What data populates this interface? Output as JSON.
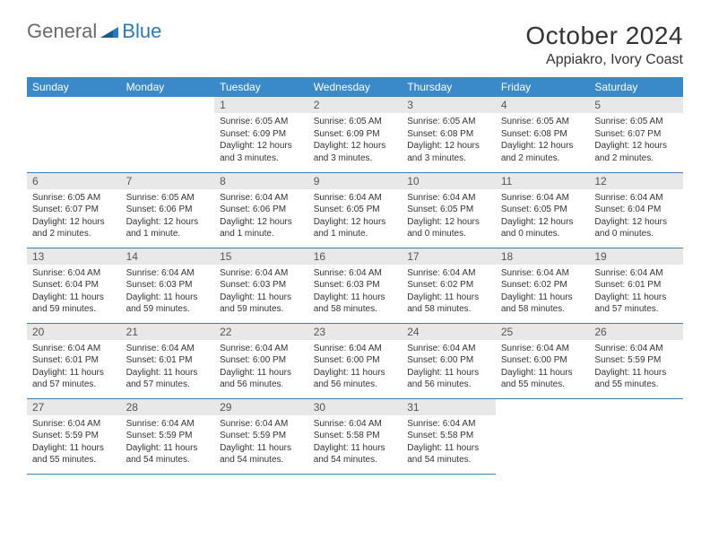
{
  "logo": {
    "text1": "General",
    "text2": "Blue"
  },
  "title": "October 2024",
  "location": "Appiakro, Ivory Coast",
  "colors": {
    "header_bg": "#3a8ac9",
    "header_text": "#ffffff",
    "daynum_bg": "#e8e8e8",
    "row_border": "#3a7fb5",
    "logo_gray": "#6a6a6a",
    "logo_blue": "#2a7ab9"
  },
  "day_headers": [
    "Sunday",
    "Monday",
    "Tuesday",
    "Wednesday",
    "Thursday",
    "Friday",
    "Saturday"
  ],
  "weeks": [
    [
      null,
      null,
      {
        "num": "1",
        "sunrise": "Sunrise: 6:05 AM",
        "sunset": "Sunset: 6:09 PM",
        "daylight": "Daylight: 12 hours and 3 minutes."
      },
      {
        "num": "2",
        "sunrise": "Sunrise: 6:05 AM",
        "sunset": "Sunset: 6:09 PM",
        "daylight": "Daylight: 12 hours and 3 minutes."
      },
      {
        "num": "3",
        "sunrise": "Sunrise: 6:05 AM",
        "sunset": "Sunset: 6:08 PM",
        "daylight": "Daylight: 12 hours and 3 minutes."
      },
      {
        "num": "4",
        "sunrise": "Sunrise: 6:05 AM",
        "sunset": "Sunset: 6:08 PM",
        "daylight": "Daylight: 12 hours and 2 minutes."
      },
      {
        "num": "5",
        "sunrise": "Sunrise: 6:05 AM",
        "sunset": "Sunset: 6:07 PM",
        "daylight": "Daylight: 12 hours and 2 minutes."
      }
    ],
    [
      {
        "num": "6",
        "sunrise": "Sunrise: 6:05 AM",
        "sunset": "Sunset: 6:07 PM",
        "daylight": "Daylight: 12 hours and 2 minutes."
      },
      {
        "num": "7",
        "sunrise": "Sunrise: 6:05 AM",
        "sunset": "Sunset: 6:06 PM",
        "daylight": "Daylight: 12 hours and 1 minute."
      },
      {
        "num": "8",
        "sunrise": "Sunrise: 6:04 AM",
        "sunset": "Sunset: 6:06 PM",
        "daylight": "Daylight: 12 hours and 1 minute."
      },
      {
        "num": "9",
        "sunrise": "Sunrise: 6:04 AM",
        "sunset": "Sunset: 6:05 PM",
        "daylight": "Daylight: 12 hours and 1 minute."
      },
      {
        "num": "10",
        "sunrise": "Sunrise: 6:04 AM",
        "sunset": "Sunset: 6:05 PM",
        "daylight": "Daylight: 12 hours and 0 minutes."
      },
      {
        "num": "11",
        "sunrise": "Sunrise: 6:04 AM",
        "sunset": "Sunset: 6:05 PM",
        "daylight": "Daylight: 12 hours and 0 minutes."
      },
      {
        "num": "12",
        "sunrise": "Sunrise: 6:04 AM",
        "sunset": "Sunset: 6:04 PM",
        "daylight": "Daylight: 12 hours and 0 minutes."
      }
    ],
    [
      {
        "num": "13",
        "sunrise": "Sunrise: 6:04 AM",
        "sunset": "Sunset: 6:04 PM",
        "daylight": "Daylight: 11 hours and 59 minutes."
      },
      {
        "num": "14",
        "sunrise": "Sunrise: 6:04 AM",
        "sunset": "Sunset: 6:03 PM",
        "daylight": "Daylight: 11 hours and 59 minutes."
      },
      {
        "num": "15",
        "sunrise": "Sunrise: 6:04 AM",
        "sunset": "Sunset: 6:03 PM",
        "daylight": "Daylight: 11 hours and 59 minutes."
      },
      {
        "num": "16",
        "sunrise": "Sunrise: 6:04 AM",
        "sunset": "Sunset: 6:03 PM",
        "daylight": "Daylight: 11 hours and 58 minutes."
      },
      {
        "num": "17",
        "sunrise": "Sunrise: 6:04 AM",
        "sunset": "Sunset: 6:02 PM",
        "daylight": "Daylight: 11 hours and 58 minutes."
      },
      {
        "num": "18",
        "sunrise": "Sunrise: 6:04 AM",
        "sunset": "Sunset: 6:02 PM",
        "daylight": "Daylight: 11 hours and 58 minutes."
      },
      {
        "num": "19",
        "sunrise": "Sunrise: 6:04 AM",
        "sunset": "Sunset: 6:01 PM",
        "daylight": "Daylight: 11 hours and 57 minutes."
      }
    ],
    [
      {
        "num": "20",
        "sunrise": "Sunrise: 6:04 AM",
        "sunset": "Sunset: 6:01 PM",
        "daylight": "Daylight: 11 hours and 57 minutes."
      },
      {
        "num": "21",
        "sunrise": "Sunrise: 6:04 AM",
        "sunset": "Sunset: 6:01 PM",
        "daylight": "Daylight: 11 hours and 57 minutes."
      },
      {
        "num": "22",
        "sunrise": "Sunrise: 6:04 AM",
        "sunset": "Sunset: 6:00 PM",
        "daylight": "Daylight: 11 hours and 56 minutes."
      },
      {
        "num": "23",
        "sunrise": "Sunrise: 6:04 AM",
        "sunset": "Sunset: 6:00 PM",
        "daylight": "Daylight: 11 hours and 56 minutes."
      },
      {
        "num": "24",
        "sunrise": "Sunrise: 6:04 AM",
        "sunset": "Sunset: 6:00 PM",
        "daylight": "Daylight: 11 hours and 56 minutes."
      },
      {
        "num": "25",
        "sunrise": "Sunrise: 6:04 AM",
        "sunset": "Sunset: 6:00 PM",
        "daylight": "Daylight: 11 hours and 55 minutes."
      },
      {
        "num": "26",
        "sunrise": "Sunrise: 6:04 AM",
        "sunset": "Sunset: 5:59 PM",
        "daylight": "Daylight: 11 hours and 55 minutes."
      }
    ],
    [
      {
        "num": "27",
        "sunrise": "Sunrise: 6:04 AM",
        "sunset": "Sunset: 5:59 PM",
        "daylight": "Daylight: 11 hours and 55 minutes."
      },
      {
        "num": "28",
        "sunrise": "Sunrise: 6:04 AM",
        "sunset": "Sunset: 5:59 PM",
        "daylight": "Daylight: 11 hours and 54 minutes."
      },
      {
        "num": "29",
        "sunrise": "Sunrise: 6:04 AM",
        "sunset": "Sunset: 5:59 PM",
        "daylight": "Daylight: 11 hours and 54 minutes."
      },
      {
        "num": "30",
        "sunrise": "Sunrise: 6:04 AM",
        "sunset": "Sunset: 5:58 PM",
        "daylight": "Daylight: 11 hours and 54 minutes."
      },
      {
        "num": "31",
        "sunrise": "Sunrise: 6:04 AM",
        "sunset": "Sunset: 5:58 PM",
        "daylight": "Daylight: 11 hours and 54 minutes."
      },
      null,
      null
    ]
  ]
}
